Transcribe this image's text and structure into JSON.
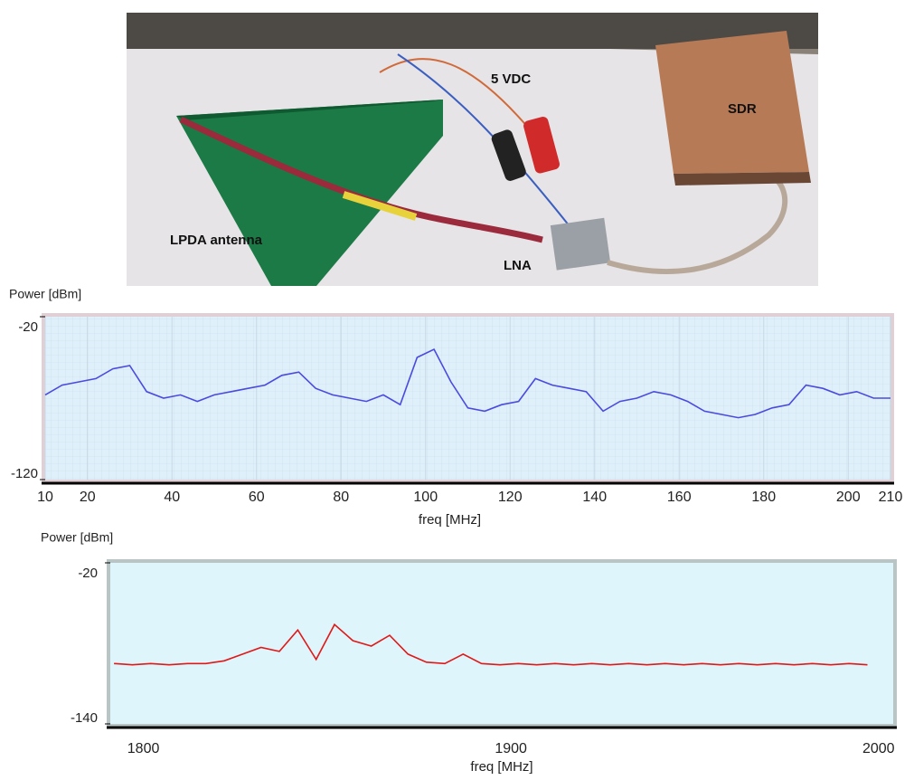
{
  "photo": {
    "labels": [
      "5 VDC",
      "SDR",
      "LPDA antenna",
      "LNA"
    ]
  },
  "chart_data": [
    {
      "type": "line",
      "ylabel": "Power [dBm]",
      "xlabel": "freq [MHz]",
      "color": "#4a4ae0",
      "grid": true,
      "xlim": [
        10,
        210
      ],
      "xticks": [
        10,
        20,
        40,
        60,
        80,
        100,
        120,
        140,
        160,
        180,
        200,
        210
      ],
      "ylim": [
        -120,
        -20
      ],
      "yticks": [
        -20,
        -120
      ],
      "x": [
        10,
        14,
        18,
        22,
        26,
        30,
        34,
        38,
        42,
        46,
        50,
        54,
        58,
        62,
        66,
        70,
        74,
        78,
        82,
        86,
        90,
        94,
        98,
        102,
        106,
        110,
        114,
        118,
        122,
        126,
        130,
        134,
        138,
        142,
        146,
        150,
        154,
        158,
        162,
        166,
        170,
        174,
        178,
        182,
        186,
        190,
        194,
        198,
        202,
        206,
        210
      ],
      "values": [
        -68,
        -62,
        -60,
        -58,
        -52,
        -50,
        -66,
        -70,
        -68,
        -72,
        -68,
        -66,
        -64,
        -62,
        -56,
        -54,
        -64,
        -68,
        -70,
        -72,
        -68,
        -74,
        -45,
        -40,
        -60,
        -76,
        -78,
        -74,
        -72,
        -58,
        -62,
        -64,
        -66,
        -78,
        -72,
        -70,
        -66,
        -68,
        -72,
        -78,
        -80,
        -82,
        -80,
        -76,
        -74,
        -62,
        -64,
        -68,
        -66,
        -70,
        -70
      ]
    },
    {
      "type": "line",
      "ylabel": "Power [dBm]",
      "xlabel": "freq [MHz]",
      "color": "#e01818",
      "grid": false,
      "xlim": [
        1791,
        2004
      ],
      "xticks": [
        1800,
        1900,
        2000
      ],
      "ylim": [
        -140,
        -20
      ],
      "yticks": [
        -20,
        -140
      ],
      "x": [
        1792,
        1797,
        1802,
        1807,
        1812,
        1817,
        1822,
        1827,
        1832,
        1837,
        1842,
        1847,
        1852,
        1857,
        1862,
        1867,
        1872,
        1877,
        1882,
        1887,
        1892,
        1897,
        1902,
        1907,
        1912,
        1917,
        1922,
        1927,
        1932,
        1937,
        1942,
        1947,
        1952,
        1957,
        1962,
        1967,
        1972,
        1977,
        1982,
        1987,
        1992,
        1997
      ],
      "values": [
        -95,
        -96,
        -95,
        -96,
        -95,
        -95,
        -93,
        -88,
        -83,
        -86,
        -70,
        -92,
        -66,
        -78,
        -82,
        -74,
        -88,
        -94,
        -95,
        -88,
        -95,
        -96,
        -95,
        -96,
        -95,
        -96,
        -95,
        -96,
        -95,
        -96,
        -95,
        -96,
        -95,
        -96,
        -95,
        -96,
        -95,
        -96,
        -95,
        -96,
        -95,
        -96
      ]
    }
  ]
}
